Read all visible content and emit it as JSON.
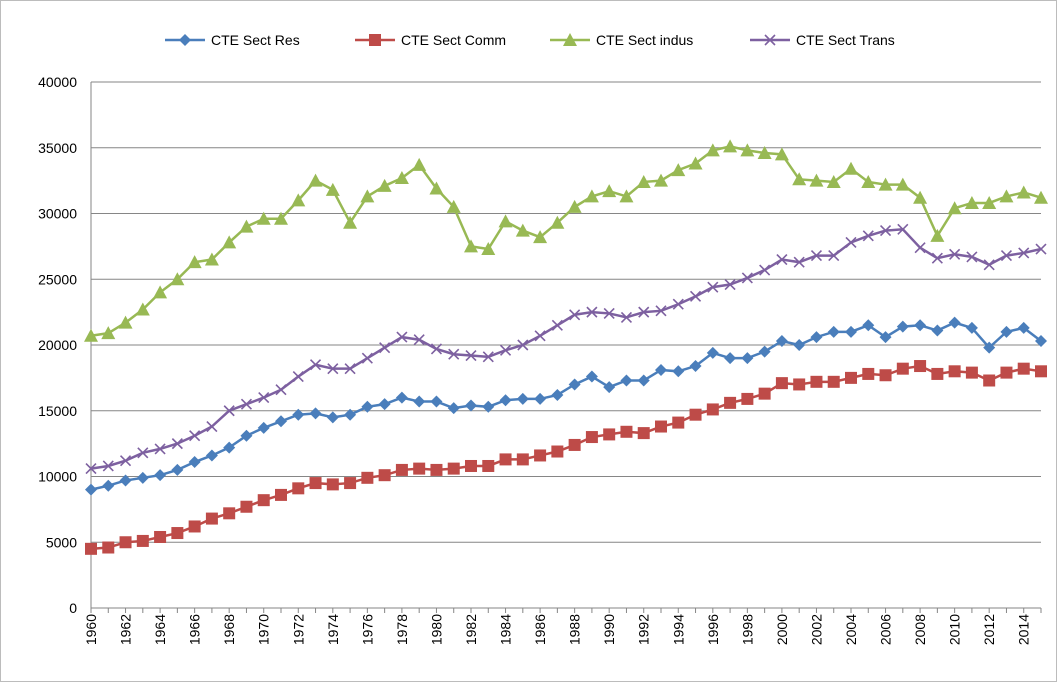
{
  "chart_data": {
    "type": "line",
    "categories": [
      "1960",
      null,
      "1962",
      null,
      "1964",
      null,
      "1966",
      null,
      "1968",
      null,
      "1970",
      null,
      "1972",
      null,
      "1974",
      null,
      "1976",
      null,
      "1978",
      null,
      "1980",
      null,
      "1982",
      null,
      "1984",
      null,
      "1986",
      null,
      "1988",
      null,
      "1990",
      null,
      "1992",
      null,
      "1994",
      null,
      "1996",
      null,
      "1998",
      null,
      "2000",
      null,
      "2002",
      null,
      "2004",
      null,
      "2006",
      null,
      "2008",
      null,
      "2010",
      null,
      "2012",
      null,
      "2014",
      null
    ],
    "series": [
      {
        "name": "CTE Sect Res",
        "color": "#4a7ebb",
        "marker": "diamond",
        "values": [
          9000,
          9300,
          9700,
          9900,
          10100,
          10500,
          11100,
          11600,
          12200,
          13100,
          13700,
          14200,
          14700,
          14800,
          14500,
          14700,
          15300,
          15500,
          16000,
          15700,
          15700,
          15200,
          15400,
          15300,
          15800,
          15900,
          15900,
          16200,
          17000,
          17600,
          16800,
          17300,
          17300,
          18100,
          18000,
          18400,
          19400,
          19000,
          19000,
          19500,
          20300,
          20000,
          20600,
          21000,
          21000,
          21500,
          20600,
          21400,
          21500,
          21100,
          21700,
          21300,
          19800,
          21000,
          21300,
          20300
        ]
      },
      {
        "name": "CTE Sect Comm",
        "color": "#be4b48",
        "marker": "square",
        "values": [
          4500,
          4600,
          5000,
          5100,
          5400,
          5700,
          6200,
          6800,
          7200,
          7700,
          8200,
          8600,
          9100,
          9500,
          9400,
          9500,
          9900,
          10100,
          10500,
          10600,
          10500,
          10600,
          10800,
          10800,
          11300,
          11300,
          11600,
          11900,
          12400,
          13000,
          13200,
          13400,
          13300,
          13800,
          14100,
          14700,
          15100,
          15600,
          15900,
          16300,
          17100,
          17000,
          17200,
          17200,
          17500,
          17800,
          17700,
          18200,
          18400,
          17800,
          18000,
          17900,
          17300,
          17900,
          18200,
          18000
        ]
      },
      {
        "name": "CTE Sect indus",
        "color": "#98b954",
        "marker": "triangle",
        "values": [
          20700,
          20900,
          21700,
          22700,
          24000,
          25000,
          26300,
          26500,
          27800,
          29000,
          29600,
          29600,
          31000,
          32500,
          31800,
          29300,
          31300,
          32100,
          32700,
          33700,
          31900,
          30500,
          27500,
          27300,
          29400,
          28700,
          28200,
          29300,
          30500,
          31300,
          31700,
          31300,
          32400,
          32500,
          33300,
          33800,
          34800,
          35100,
          34800,
          34600,
          34500,
          32600,
          32500,
          32400,
          33400,
          32400,
          32200,
          32200,
          31200,
          28300,
          30400,
          30800,
          30800,
          31300,
          31600,
          31200
        ]
      },
      {
        "name": "CTE Sect Trans",
        "color": "#7d60a0",
        "marker": "x",
        "values": [
          10600,
          10800,
          11200,
          11800,
          12100,
          12500,
          13100,
          13800,
          15000,
          15500,
          16000,
          16600,
          17600,
          18500,
          18200,
          18200,
          19000,
          19800,
          20600,
          20400,
          19700,
          19300,
          19200,
          19100,
          19600,
          20000,
          20700,
          21500,
          22300,
          22500,
          22400,
          22100,
          22500,
          22600,
          23100,
          23700,
          24400,
          24600,
          25100,
          25700,
          26500,
          26300,
          26800,
          26800,
          27800,
          28300,
          28700,
          28800,
          27400,
          26600,
          26900,
          26700,
          26100,
          26800,
          27000,
          27300
        ]
      }
    ],
    "ylim": [
      0,
      40000
    ],
    "yticks": [
      0,
      5000,
      10000,
      15000,
      20000,
      25000,
      30000,
      35000,
      40000
    ],
    "grid": true,
    "legend": "top"
  }
}
